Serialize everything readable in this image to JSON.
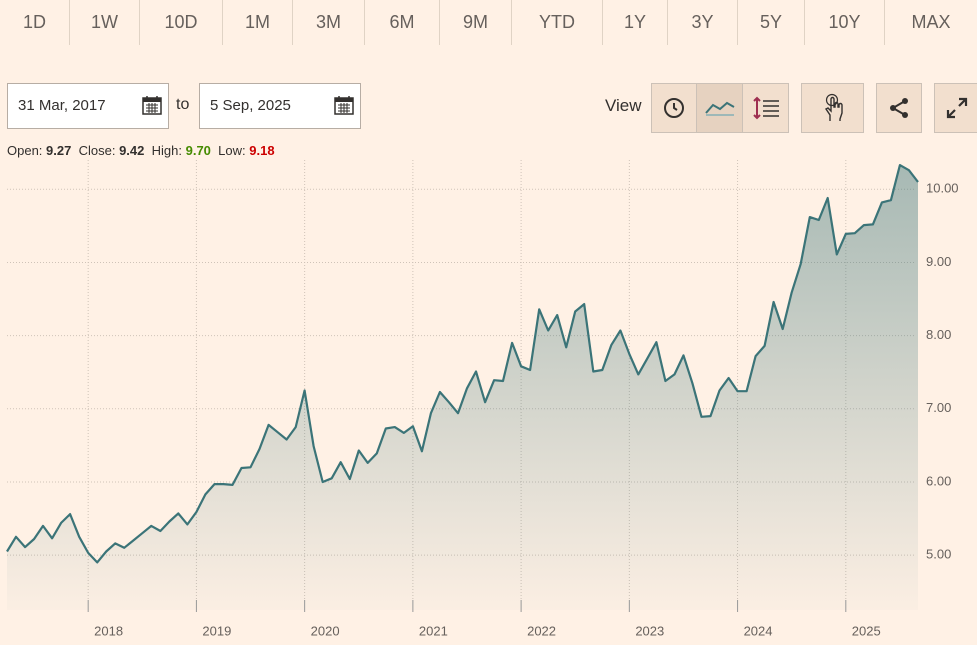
{
  "range_buttons": [
    "1D",
    "1W",
    "10D",
    "1M",
    "3M",
    "6M",
    "9M",
    "YTD",
    "1Y",
    "3Y",
    "5Y",
    "10Y",
    "MAX"
  ],
  "date_range": {
    "from": "31 Mar, 2017",
    "separator": "to",
    "to": "5 Sep, 2025"
  },
  "view_label": "View",
  "ohlc": {
    "open_label": "Open:",
    "open": "9.27",
    "close_label": "Close:",
    "close": "9.42",
    "high_label": "High:",
    "high": "9.70",
    "low_label": "Low:",
    "low": "9.18"
  },
  "chart_data": {
    "type": "area",
    "color": "#3b7478",
    "grid": true,
    "x": [
      2017.25,
      2017.333,
      2017.417,
      2017.5,
      2017.583,
      2017.667,
      2017.75,
      2017.833,
      2017.917,
      2018,
      2018.083,
      2018.167,
      2018.25,
      2018.333,
      2018.417,
      2018.5,
      2018.583,
      2018.667,
      2018.75,
      2018.833,
      2018.917,
      2019,
      2019.083,
      2019.167,
      2019.25,
      2019.333,
      2019.417,
      2019.5,
      2019.583,
      2019.667,
      2019.75,
      2019.833,
      2019.917,
      2020,
      2020.083,
      2020.167,
      2020.25,
      2020.333,
      2020.417,
      2020.5,
      2020.583,
      2020.667,
      2020.75,
      2020.833,
      2020.917,
      2021,
      2021.083,
      2021.167,
      2021.25,
      2021.333,
      2021.417,
      2021.5,
      2021.583,
      2021.667,
      2021.75,
      2021.833,
      2021.917,
      2022,
      2022.083,
      2022.167,
      2022.25,
      2022.333,
      2022.417,
      2022.5,
      2022.583,
      2022.667,
      2022.75,
      2022.833,
      2022.917,
      2023,
      2023.083,
      2023.167,
      2023.25,
      2023.333,
      2023.417,
      2023.5,
      2023.583,
      2023.667,
      2023.75,
      2023.833,
      2023.917,
      2024,
      2024.083,
      2024.167,
      2024.25,
      2024.333,
      2024.417,
      2024.5,
      2024.583,
      2024.667,
      2024.75,
      2024.833,
      2024.917,
      2025,
      2025.083,
      2025.167,
      2025.25,
      2025.333,
      2025.417,
      2025.5,
      2025.583,
      2025.667
    ],
    "values": [
      5.05,
      5.25,
      5.11,
      5.22,
      5.4,
      5.23,
      5.44,
      5.56,
      5.25,
      5.03,
      4.9,
      5.05,
      5.16,
      5.1,
      5.2,
      5.3,
      5.4,
      5.33,
      5.46,
      5.57,
      5.42,
      5.59,
      5.83,
      5.97,
      5.97,
      5.96,
      6.19,
      6.2,
      6.45,
      6.78,
      6.68,
      6.58,
      6.75,
      7.25,
      6.49,
      6.0,
      6.05,
      6.27,
      6.04,
      6.43,
      6.26,
      6.39,
      6.73,
      6.75,
      6.67,
      6.76,
      6.42,
      6.94,
      7.23,
      7.09,
      6.94,
      7.28,
      7.51,
      7.09,
      7.39,
      7.38,
      7.9,
      7.58,
      7.53,
      8.36,
      8.07,
      8.28,
      7.84,
      8.33,
      8.43,
      7.51,
      7.53,
      7.87,
      8.07,
      7.75,
      7.47,
      7.69,
      7.91,
      7.38,
      7.47,
      7.73,
      7.35,
      6.89,
      6.9,
      7.25,
      7.42,
      7.24,
      7.24,
      7.72,
      7.86,
      8.46,
      8.09,
      8.59,
      8.98,
      9.62,
      9.58,
      9.88,
      9.11,
      9.39,
      9.4,
      9.51,
      9.52,
      9.82,
      9.85,
      10.33,
      10.26,
      10.1
    ],
    "xlim": [
      2017.25,
      2025.667
    ],
    "xticks": [
      2018,
      2019,
      2020,
      2021,
      2022,
      2023,
      2024,
      2025
    ],
    "ylim": [
      4.25,
      10.4
    ],
    "yticks": [
      {
        "value": 5,
        "label": "5.00"
      },
      {
        "value": 6,
        "label": "6.00"
      },
      {
        "value": 7,
        "label": "7.00"
      },
      {
        "value": 8,
        "label": "8.00"
      },
      {
        "value": 9,
        "label": "9.00"
      },
      {
        "value": 10,
        "label": "10.00"
      }
    ]
  }
}
